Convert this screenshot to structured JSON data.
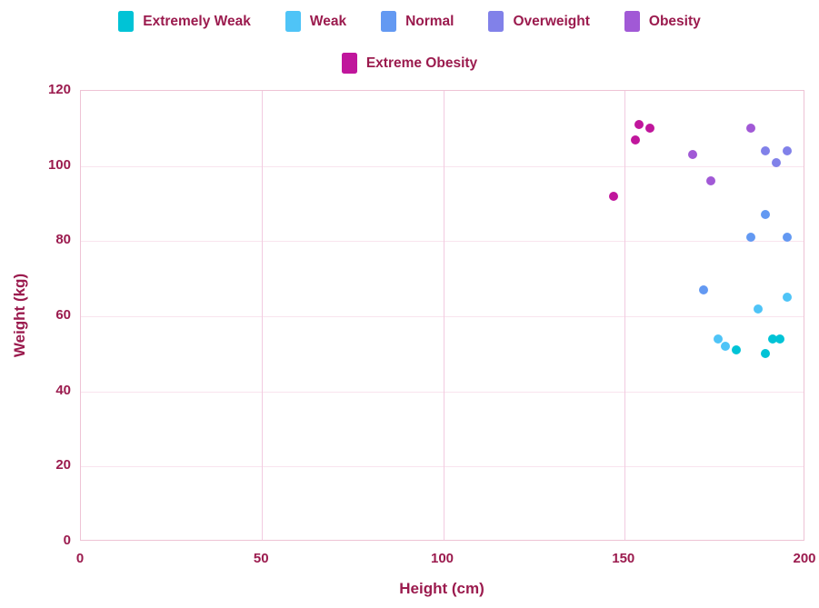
{
  "colors": {
    "text": "#9b1b4e",
    "grid_horizontal": "#f9e4ee",
    "grid_vertical": "#f2cbe0",
    "plot_border": "#eec3d5",
    "background": "#ffffff"
  },
  "chart_data": {
    "type": "scatter",
    "title": "",
    "xlabel": "Height (cm)",
    "ylabel": "Weight (kg)",
    "xlim": [
      0,
      200
    ],
    "ylim": [
      0,
      120
    ],
    "xticks": [
      0,
      50,
      100,
      150,
      200
    ],
    "yticks": [
      0,
      20,
      40,
      60,
      80,
      100,
      120
    ],
    "grid": true,
    "legend_position": "top",
    "legend_rows": [
      [
        "Extremely Weak",
        "Weak",
        "Normal",
        "Overweight",
        "Obesity"
      ],
      [
        "Extreme Obesity"
      ]
    ],
    "series": [
      {
        "name": "Extremely Weak",
        "color": "#00c3d6",
        "points": [
          [
            191,
            54
          ],
          [
            193,
            54
          ],
          [
            181,
            51
          ],
          [
            189,
            50
          ]
        ]
      },
      {
        "name": "Weak",
        "color": "#4fc4f7",
        "points": [
          [
            195,
            65
          ],
          [
            187,
            62
          ],
          [
            176,
            54
          ],
          [
            178,
            52
          ]
        ]
      },
      {
        "name": "Normal",
        "color": "#6399f2",
        "points": [
          [
            189,
            87
          ],
          [
            185,
            81
          ],
          [
            195,
            81
          ],
          [
            172,
            67
          ]
        ]
      },
      {
        "name": "Overweight",
        "color": "#8181e9",
        "points": [
          [
            189,
            104
          ],
          [
            195,
            104
          ],
          [
            192,
            101
          ]
        ]
      },
      {
        "name": "Obesity",
        "color": "#a159d6",
        "points": [
          [
            185,
            110
          ],
          [
            169,
            103
          ],
          [
            174,
            96
          ]
        ]
      },
      {
        "name": "Extreme Obesity",
        "color": "#c0169c",
        "points": [
          [
            154,
            111
          ],
          [
            157,
            110
          ],
          [
            153,
            107
          ],
          [
            147,
            92
          ]
        ]
      }
    ]
  }
}
